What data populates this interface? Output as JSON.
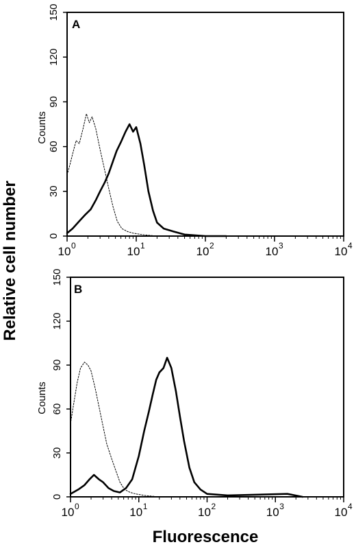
{
  "figure": {
    "ylabel": "Relative cell number",
    "xlabel": "Fluorescence"
  },
  "chart_data": [
    {
      "type": "line",
      "panel": "A",
      "ylabel": "Counts",
      "x_scale": "log",
      "xlim": [
        1,
        10000
      ],
      "ylim": [
        0,
        150
      ],
      "x_ticks": [
        {
          "base": "10",
          "exp": "0"
        },
        {
          "base": "10",
          "exp": "1"
        },
        {
          "base": "10",
          "exp": "2"
        },
        {
          "base": "10",
          "exp": "3"
        },
        {
          "base": "10",
          "exp": "4"
        }
      ],
      "y_ticks": [
        "0",
        "30",
        "60",
        "90",
        "120",
        "150"
      ],
      "series": [
        {
          "style": "dashed",
          "x": [
            1.0,
            1.1,
            1.2,
            1.35,
            1.5,
            1.7,
            1.9,
            2.1,
            2.3,
            2.6,
            3.0,
            3.5,
            4.0,
            4.6,
            5.3,
            6.2,
            7.5,
            9.0,
            12,
            20,
            40
          ],
          "y": [
            41,
            48,
            55,
            64,
            62,
            72,
            82,
            76,
            80,
            72,
            58,
            44,
            32,
            20,
            10,
            5,
            3,
            2,
            1,
            0,
            0
          ]
        },
        {
          "style": "solid",
          "x": [
            1.0,
            1.2,
            1.5,
            1.8,
            2.2,
            2.6,
            3.0,
            3.5,
            4.0,
            4.6,
            5.2,
            6.0,
            7.0,
            8.0,
            9.0,
            10,
            11.5,
            13,
            15,
            17.5,
            20,
            25,
            35,
            50,
            100,
            200
          ],
          "y": [
            2,
            5,
            10,
            14,
            18,
            24,
            30,
            36,
            42,
            50,
            57,
            63,
            70,
            75,
            70,
            73,
            62,
            48,
            30,
            17,
            9,
            5,
            3,
            1,
            0,
            0
          ]
        }
      ]
    },
    {
      "type": "line",
      "panel": "B",
      "ylabel": "Counts",
      "x_scale": "log",
      "xlim": [
        1,
        10000
      ],
      "ylim": [
        0,
        150
      ],
      "x_ticks": [
        {
          "base": "10",
          "exp": "0"
        },
        {
          "base": "10",
          "exp": "1"
        },
        {
          "base": "10",
          "exp": "2"
        },
        {
          "base": "10",
          "exp": "3"
        },
        {
          "base": "10",
          "exp": "4"
        }
      ],
      "y_ticks": [
        "0",
        "30",
        "60",
        "90",
        "120",
        "150"
      ],
      "series": [
        {
          "style": "dashed",
          "x": [
            1.0,
            1.1,
            1.25,
            1.4,
            1.6,
            1.8,
            2.0,
            2.3,
            2.6,
            3.0,
            3.4,
            4.0,
            4.6,
            5.3,
            6.2,
            7.5,
            9,
            12,
            20,
            50
          ],
          "y": [
            50,
            62,
            78,
            88,
            92,
            90,
            86,
            74,
            62,
            48,
            36,
            26,
            18,
            10,
            5,
            3,
            2,
            1,
            0,
            0
          ]
        },
        {
          "style": "solid",
          "x": [
            1.0,
            1.3,
            1.6,
            1.9,
            2.2,
            2.6,
            3.0,
            3.6,
            4.3,
            5.3,
            6.5,
            8,
            10,
            12,
            14,
            16,
            18,
            20,
            23,
            26,
            30,
            35,
            40,
            46,
            55,
            65,
            80,
            100,
            200,
            1500,
            2500
          ],
          "y": [
            2,
            5,
            8,
            12,
            15,
            12,
            10,
            6,
            4,
            3,
            6,
            12,
            28,
            45,
            58,
            70,
            80,
            85,
            88,
            95,
            88,
            72,
            55,
            38,
            20,
            10,
            5,
            2,
            1,
            2,
            0
          ]
        }
      ]
    }
  ]
}
